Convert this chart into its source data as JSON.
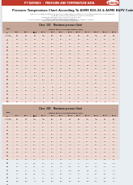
{
  "header_bg": "#c0392b",
  "header_text": "P-T RATINGS  -  PRESSURE AND TEMPERATURE DATA",
  "header_text_color": "#ffffff",
  "outer_bg": "#e8eef2",
  "content_bg": "#ffffff",
  "table_header_bg": "#c8a898",
  "row_even": "#f5ddd6",
  "row_odd": "#eeddd6",
  "title_line1": "Pressure Temperature Chart According To ASME B16.34 & ASME B&PV Code",
  "note1": "Maximum Allowable Pressure ratings for all listed standard materials, calculated according to ASME standard.",
  "note2": "ASME B16.34 through Pressure Class 150 to 2500. (Bar)",
  "note3": "For Pressure Ratings expressed in other units, please see the attached notes.",
  "footer1": "Conformity: Class 150: 19.6, 14.0, 12.6, 11.2, 10.5, 10.2",
  "footer2": "Class 150 Through Pressure up to 2,500 (Bar)",
  "footer3": "All pressure/temperature restrictions are rated for other components are rated according to restrictions governed by those materials materials.",
  "col_headers": [
    "Temp",
    "Material groups / Maximum pressure (bar)",
    "",
    "",
    "",
    "",
    "",
    "",
    "",
    "",
    "",
    "",
    ""
  ],
  "col_sub": [
    "F/C",
    "B16.1",
    "B16.2",
    "B16.3 / B16.7",
    "B16.11",
    "B16.5",
    "B16.9",
    "B16.10",
    "B16.11",
    "B16.12",
    "B16.13",
    "B16.14",
    "B16.15"
  ],
  "class150_title": "Class  150",
  "class150_subtitle": "Maximum pressure (bar)",
  "class300_title": "Class  300",
  "class300_subtitle": "Maximum pressure (bar)",
  "rows_150": [
    [
      "F/C",
      "B16.1",
      "B16.2",
      "B16.3/\nB16.7",
      "B16.11",
      "B16.5",
      "B16.9",
      "B16.10",
      "B16.11",
      "B16.12",
      "B16.13",
      "B16.14",
      "B16.15"
    ],
    [
      "-29 to 38\n-20 to 100",
      "19.6\n285",
      "15.1\n220",
      "19.6\n285",
      "19.6\n285",
      "19.6\n285",
      "15.1\n220",
      "15.1\n220",
      "19.6\n285",
      "15.1\n220",
      "19.6\n285",
      "15.1\n220",
      "19.6\n285"
    ],
    [
      "66\n150",
      "19.6",
      "15.1",
      "19.6",
      "19.6",
      "19.6",
      "15.1",
      "15.1",
      "19.6",
      "15.1",
      "19.6",
      "15.1",
      "19.6"
    ],
    [
      "93\n200",
      "19.6",
      "15.1",
      "19.6",
      "19.6",
      "19.6",
      "15.1",
      "15.1",
      "19.6",
      "15.1",
      "19.6",
      "15.1",
      "19.6"
    ],
    [
      "121\n250",
      "18.4",
      "15.1",
      "19.6",
      "19.6",
      "19.6",
      "15.1",
      "15.1",
      "18.4",
      "15.1",
      "19.6",
      "15.1",
      "19.6"
    ],
    [
      "149\n300",
      "15.8",
      "15.1",
      "19.6",
      "17.8",
      "19.6",
      "15.1",
      "13.8",
      "15.8",
      "13.8",
      "19.6",
      "15.1",
      "19.6"
    ],
    [
      "177\n350",
      "14.7",
      "13.4",
      "19.6",
      "17.8",
      "19.6",
      "13.4",
      "12.5",
      "14.7",
      "12.5",
      "19.6",
      "13.4",
      "19.6"
    ],
    [
      "204\n400",
      "13.8",
      "13.4",
      "19.6",
      "17.8",
      "19.6",
      "13.4",
      "12.1",
      "13.8",
      "12.1",
      "19.6",
      "13.4",
      "19.6"
    ],
    [
      "232\n450",
      "13.2",
      "12.3",
      "19.6",
      "17.8",
      "17.8",
      "12.3",
      "11.2",
      "13.2",
      "11.2",
      "19.6",
      "12.3",
      "19.6"
    ],
    [
      "260\n500",
      "12.1",
      "11.6",
      "19.6",
      "17.8",
      "17.8",
      "11.6",
      "10.5",
      "12.1",
      "10.5",
      "19.6",
      "11.6",
      "19.6"
    ],
    [
      "288\n550",
      "11.2",
      "10.7",
      "19.6",
      "16.5",
      "16.5",
      "10.7",
      "9.8",
      "11.2",
      "9.8",
      "18.9",
      "10.7",
      "19.6"
    ],
    [
      "316\n600",
      "10.2",
      "9.8",
      "18.4",
      "15.8",
      "15.8",
      "9.8",
      "9.1",
      "10.2",
      "9.1",
      "17.8",
      "9.8",
      "19.6"
    ],
    [
      "343\n650",
      "9.5",
      "9.1",
      "16.3",
      "14.7",
      "14.7",
      "9.1",
      "8.4",
      "9.5",
      "8.4",
      "16.1",
      "9.1",
      "18.4"
    ],
    [
      "371\n700",
      "7.7",
      "8.4",
      "13.0",
      "12.6",
      "12.6",
      "8.4",
      "7.7",
      "7.7",
      "7.7",
      "14.0",
      "8.4",
      "16.1"
    ],
    [
      "399\n750",
      "6.5",
      "7.5",
      "11.2",
      "11.2",
      "11.2",
      "7.5",
      "6.8",
      "6.5",
      "6.8",
      "12.3",
      "7.5",
      "14.0"
    ],
    [
      "427\n800",
      "6.1",
      "6.5",
      "9.8",
      "9.8",
      "9.8",
      "6.5",
      "6.1",
      "6.1",
      "6.1",
      "10.5",
      "6.5",
      "14.0"
    ],
    [
      "454\n850",
      "5.8",
      "6.0",
      "8.8",
      "8.8",
      "8.8",
      "6.0",
      "5.6",
      "5.8",
      "5.6",
      "9.5",
      "6.0",
      "11.9"
    ],
    [
      "482\n900",
      "4.6",
      "5.3",
      "7.0",
      "7.0",
      "6.5",
      "5.3",
      "4.6",
      "4.6",
      "4.6",
      "7.7",
      "5.3",
      "9.8"
    ],
    [
      "510\n950",
      "3.9",
      "4.7",
      "5.6",
      "5.6",
      "5.3",
      "4.7",
      "3.9",
      "3.9",
      "3.9",
      "6.3",
      "4.7",
      "8.4"
    ],
    [
      "538\n1000",
      "3.5",
      "4.2",
      "4.9",
      "4.9",
      "4.2",
      "4.2",
      "3.5",
      "3.5",
      "3.5",
      "5.6",
      "4.2",
      "7.0"
    ]
  ],
  "rows_300": [
    [
      "F/C",
      "B16.1",
      "B16.2",
      "B16.3/\nB16.7",
      "B16.11",
      "B16.5",
      "B16.9",
      "B16.10",
      "B16.11",
      "B16.12",
      "B16.13",
      "B16.14",
      "B16.15"
    ],
    [
      "-29 to 38\n-20 to 100",
      "51.1\n740",
      "38.8\n563",
      "51.1\n740",
      "51.1\n740",
      "51.1\n740",
      "38.8\n563",
      "38.8\n563",
      "51.1\n740",
      "38.8\n563",
      "51.1\n740",
      "38.8\n563",
      "51.1\n740"
    ],
    [
      "66\n150",
      "51.1",
      "38.8",
      "51.1",
      "51.1",
      "51.1",
      "38.8",
      "38.8",
      "51.1",
      "38.8",
      "51.1",
      "38.8",
      "51.1"
    ],
    [
      "93\n200",
      "51.1",
      "38.8",
      "51.1",
      "51.1",
      "51.1",
      "38.8",
      "38.8",
      "51.1",
      "38.8",
      "51.1",
      "38.8",
      "51.1"
    ],
    [
      "121\n250",
      "49.6",
      "38.8",
      "51.1",
      "51.1",
      "51.1",
      "38.8",
      "38.8",
      "49.6",
      "38.8",
      "51.1",
      "38.8",
      "51.1"
    ],
    [
      "149\n300",
      "45.1",
      "38.8",
      "51.1",
      "49.6",
      "51.1",
      "38.8",
      "38.8",
      "45.1",
      "38.8",
      "51.1",
      "38.8",
      "51.1"
    ],
    [
      "177\n350",
      "43.4",
      "37.2",
      "51.1",
      "49.6",
      "51.1",
      "37.2",
      "36.5",
      "43.4",
      "36.5",
      "51.1",
      "37.2",
      "51.1"
    ],
    [
      "204\n400",
      "42.5",
      "36.5",
      "51.1",
      "49.6",
      "51.1",
      "36.5",
      "35.5",
      "42.5",
      "35.5",
      "51.1",
      "36.5",
      "51.1"
    ],
    [
      "232\n450",
      "40.7",
      "35.2",
      "51.1",
      "49.6",
      "49.1",
      "35.2",
      "33.8",
      "40.7",
      "33.8",
      "51.1",
      "35.2",
      "51.1"
    ],
    [
      "260\n500",
      "38.8",
      "33.5",
      "51.1",
      "49.6",
      "49.1",
      "33.5",
      "32.2",
      "38.8",
      "32.2",
      "51.1",
      "33.5",
      "51.1"
    ],
    [
      "288\n550",
      "37.0",
      "31.7",
      "51.1",
      "47.9",
      "47.9",
      "31.7",
      "30.5",
      "37.0",
      "30.5",
      "51.1",
      "31.7",
      "51.1"
    ],
    [
      "316\n600",
      "33.8",
      "29.8",
      "50.5",
      "45.3",
      "45.3",
      "29.8",
      "28.6",
      "33.8",
      "28.6",
      "50.5",
      "29.8",
      "51.1"
    ],
    [
      "343\n650",
      "29.5",
      "27.9",
      "44.8",
      "42.1",
      "42.1",
      "27.9",
      "26.7",
      "29.5",
      "26.7",
      "46.6",
      "27.9",
      "51.1"
    ],
    [
      "371\n700",
      "24.4",
      "25.9",
      "37.2",
      "35.2",
      "35.2",
      "25.9",
      "24.4",
      "24.4",
      "24.4",
      "40.4",
      "25.9",
      "46.6"
    ],
    [
      "399\n750",
      "20.7",
      "23.6",
      "32.2",
      "31.7",
      "31.7",
      "23.6",
      "21.9",
      "20.7",
      "21.9",
      "35.2",
      "23.6",
      "40.4"
    ],
    [
      "427\n800",
      "18.8",
      "20.7",
      "28.6",
      "28.1",
      "28.1",
      "20.7",
      "18.8",
      "18.8",
      "18.8",
      "30.5",
      "20.7",
      "40.4"
    ],
    [
      "454\n850",
      "17.2",
      "18.6",
      "25.5",
      "24.8",
      "24.8",
      "18.6",
      "17.2",
      "17.2",
      "17.2",
      "27.6",
      "18.6",
      "34.5"
    ],
    [
      "482\n900",
      "14.7",
      "16.6",
      "20.7",
      "20.0",
      "18.6",
      "16.6",
      "14.7",
      "14.7",
      "14.7",
      "22.4",
      "16.6",
      "28.6"
    ],
    [
      "510\n950",
      "12.8",
      "14.8",
      "17.2",
      "16.6",
      "15.5",
      "14.8",
      "12.8",
      "12.8",
      "12.8",
      "18.3",
      "14.8",
      "24.5"
    ],
    [
      "538\n1000",
      "10.2",
      "13.1",
      "14.0",
      "13.8",
      "12.1",
      "13.1",
      "10.2",
      "10.2",
      "10.2",
      "16.2",
      "13.1",
      "20.0"
    ]
  ]
}
